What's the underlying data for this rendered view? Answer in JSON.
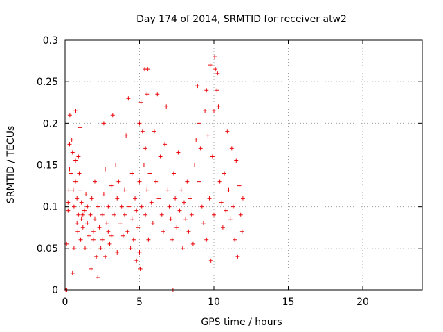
{
  "chart_data": {
    "type": "scatter",
    "title": "Day 174 of 2014, SRMTID for receiver atw2",
    "xlabel": "GPS time / hours",
    "ylabel": "SRMTID / TECUs",
    "xlim": [
      0,
      24
    ],
    "ylim": [
      0,
      0.3
    ],
    "x_ticks": [
      "0",
      "5",
      "10",
      "15",
      "20"
    ],
    "y_ticks": [
      "0",
      "0.05",
      "0.1",
      "0.15",
      "0.2",
      "0.25",
      "0.3"
    ],
    "grid": true,
    "marker": "+",
    "series": [
      {
        "name": "atw2",
        "color": "#e8080b",
        "points": [
          [
            0.05,
            0.0
          ],
          [
            0.12,
            0.0
          ],
          [
            0.1,
            0.055
          ],
          [
            0.2,
            0.095
          ],
          [
            0.2,
            0.105
          ],
          [
            0.25,
            0.12
          ],
          [
            0.3,
            0.145
          ],
          [
            0.3,
            0.175
          ],
          [
            0.32,
            0.21
          ],
          [
            0.4,
            0.14
          ],
          [
            0.45,
            0.18
          ],
          [
            0.5,
            0.02
          ],
          [
            0.5,
            0.165
          ],
          [
            0.55,
            0.12
          ],
          [
            0.6,
            0.1
          ],
          [
            0.6,
            0.05
          ],
          [
            0.7,
            0.155
          ],
          [
            0.7,
            0.13
          ],
          [
            0.72,
            0.215
          ],
          [
            0.8,
            0.08
          ],
          [
            0.8,
            0.11
          ],
          [
            0.85,
            0.07
          ],
          [
            0.9,
            0.09
          ],
          [
            0.9,
            0.16
          ],
          [
            0.95,
            0.14
          ],
          [
            1.0,
            0.195
          ],
          [
            1.0,
            0.12
          ],
          [
            1.05,
            0.06
          ],
          [
            1.1,
            0.085
          ],
          [
            1.1,
            0.105
          ],
          [
            1.2,
            0.075
          ],
          [
            1.2,
            0.09
          ],
          [
            1.3,
            0.095
          ],
          [
            1.35,
            0.05
          ],
          [
            1.4,
            0.115
          ],
          [
            1.5,
            0.08
          ],
          [
            1.5,
            0.1
          ],
          [
            1.6,
            0.065
          ],
          [
            1.7,
            0.09
          ],
          [
            1.75,
            0.025
          ],
          [
            1.8,
            0.11
          ],
          [
            1.9,
            0.07
          ],
          [
            1.9,
            0.06
          ],
          [
            2.0,
            0.085
          ],
          [
            2.0,
            0.13
          ],
          [
            2.1,
            0.04
          ],
          [
            2.2,
            0.015
          ],
          [
            2.2,
            0.1
          ],
          [
            2.3,
            0.075
          ],
          [
            2.4,
            0.05
          ],
          [
            2.5,
            0.09
          ],
          [
            2.5,
            0.06
          ],
          [
            2.6,
            0.115
          ],
          [
            2.6,
            0.2
          ],
          [
            2.7,
            0.145
          ],
          [
            2.7,
            0.04
          ],
          [
            2.8,
            0.08
          ],
          [
            2.9,
            0.1
          ],
          [
            2.9,
            0.07
          ],
          [
            3.0,
            0.055
          ],
          [
            3.1,
            0.125
          ],
          [
            3.1,
            0.065
          ],
          [
            3.2,
            0.21
          ],
          [
            3.3,
            0.09
          ],
          [
            3.4,
            0.15
          ],
          [
            3.5,
            0.11
          ],
          [
            3.5,
            0.045
          ],
          [
            3.6,
            0.13
          ],
          [
            3.7,
            0.08
          ],
          [
            3.8,
            0.1
          ],
          [
            3.9,
            0.065
          ],
          [
            4.0,
            0.12
          ],
          [
            4.0,
            0.09
          ],
          [
            4.1,
            0.185
          ],
          [
            4.2,
            0.07
          ],
          [
            4.25,
            0.23
          ],
          [
            4.3,
            0.1
          ],
          [
            4.4,
            0.05
          ],
          [
            4.5,
            0.14
          ],
          [
            4.5,
            0.085
          ],
          [
            4.6,
            0.06
          ],
          [
            4.7,
            0.11
          ],
          [
            4.8,
            0.035
          ],
          [
            4.8,
            0.095
          ],
          [
            4.9,
            0.075
          ],
          [
            5.0,
            0.13
          ],
          [
            5.0,
            0.2
          ],
          [
            5.0,
            0.045
          ],
          [
            5.05,
            0.025
          ],
          [
            5.1,
            0.225
          ],
          [
            5.15,
            0.1
          ],
          [
            5.2,
            0.19
          ],
          [
            5.3,
            0.15
          ],
          [
            5.35,
            0.265
          ],
          [
            5.4,
            0.17
          ],
          [
            5.4,
            0.09
          ],
          [
            5.5,
            0.235
          ],
          [
            5.5,
            0.12
          ],
          [
            5.55,
            0.265
          ],
          [
            5.6,
            0.06
          ],
          [
            5.7,
            0.14
          ],
          [
            5.8,
            0.105
          ],
          [
            5.9,
            0.08
          ],
          [
            6.0,
            0.19
          ],
          [
            6.1,
            0.13
          ],
          [
            6.2,
            0.235
          ],
          [
            6.3,
            0.11
          ],
          [
            6.4,
            0.16
          ],
          [
            6.5,
            0.09
          ],
          [
            6.6,
            0.07
          ],
          [
            6.7,
            0.175
          ],
          [
            6.8,
            0.22
          ],
          [
            6.9,
            0.12
          ],
          [
            7.0,
            0.1
          ],
          [
            7.1,
            0.085
          ],
          [
            7.2,
            0.06
          ],
          [
            7.25,
            0.0
          ],
          [
            7.3,
            0.14
          ],
          [
            7.4,
            0.11
          ],
          [
            7.5,
            0.075
          ],
          [
            7.6,
            0.165
          ],
          [
            7.7,
            0.095
          ],
          [
            7.8,
            0.12
          ],
          [
            7.9,
            0.05
          ],
          [
            8.0,
            0.105
          ],
          [
            8.1,
            0.085
          ],
          [
            8.2,
            0.13
          ],
          [
            8.3,
            0.07
          ],
          [
            8.4,
            0.11
          ],
          [
            8.5,
            0.09
          ],
          [
            8.6,
            0.055
          ],
          [
            8.7,
            0.15
          ],
          [
            8.8,
            0.18
          ],
          [
            8.9,
            0.245
          ],
          [
            9.0,
            0.2
          ],
          [
            9.0,
            0.13
          ],
          [
            9.1,
            0.17
          ],
          [
            9.2,
            0.1
          ],
          [
            9.3,
            0.08
          ],
          [
            9.4,
            0.215
          ],
          [
            9.5,
            0.24
          ],
          [
            9.5,
            0.06
          ],
          [
            9.6,
            0.185
          ],
          [
            9.7,
            0.11
          ],
          [
            9.75,
            0.27
          ],
          [
            9.8,
            0.035
          ],
          [
            9.9,
            0.16
          ],
          [
            10.0,
            0.215
          ],
          [
            10.0,
            0.09
          ],
          [
            10.05,
            0.28
          ],
          [
            10.1,
            0.265
          ],
          [
            10.2,
            0.24
          ],
          [
            10.25,
            0.26
          ],
          [
            10.3,
            0.22
          ],
          [
            10.4,
            0.13
          ],
          [
            10.5,
            0.105
          ],
          [
            10.6,
            0.075
          ],
          [
            10.7,
            0.14
          ],
          [
            10.8,
            0.095
          ],
          [
            10.9,
            0.19
          ],
          [
            11.0,
            0.12
          ],
          [
            11.1,
            0.085
          ],
          [
            11.2,
            0.17
          ],
          [
            11.3,
            0.1
          ],
          [
            11.4,
            0.06
          ],
          [
            11.5,
            0.155
          ],
          [
            11.6,
            0.04
          ],
          [
            11.7,
            0.125
          ],
          [
            11.8,
            0.09
          ],
          [
            11.9,
            0.07
          ],
          [
            11.95,
            0.11
          ]
        ]
      }
    ]
  }
}
